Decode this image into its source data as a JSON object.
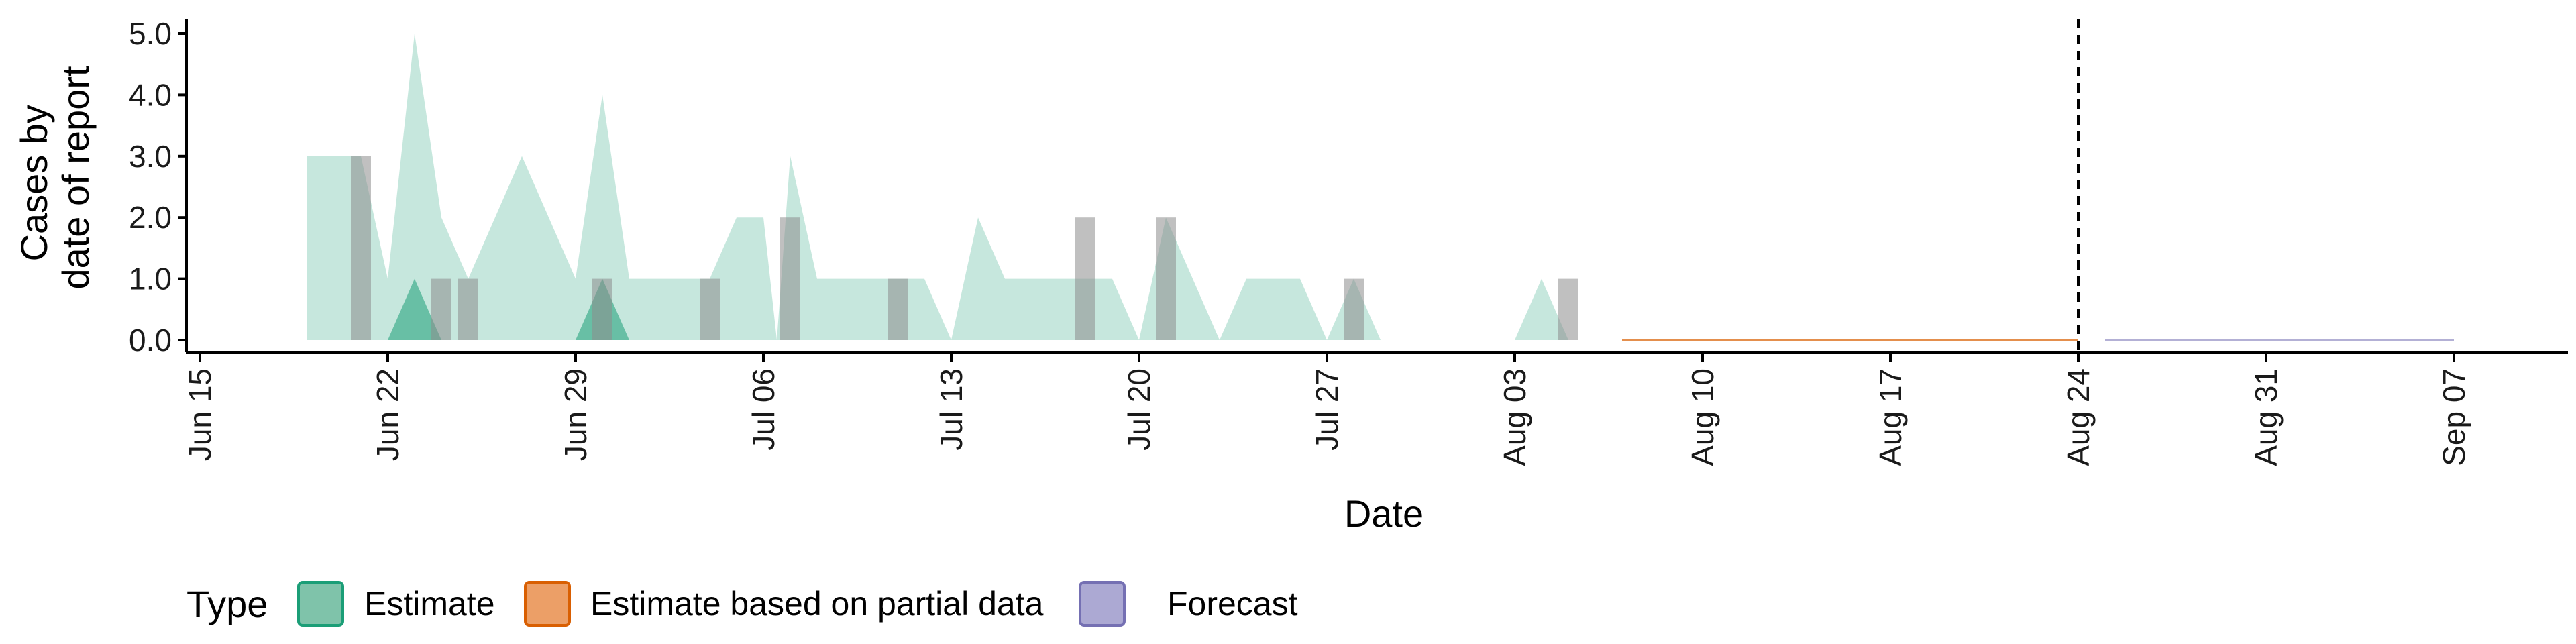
{
  "chart_data": {
    "type": "area",
    "xlabel": "Date",
    "ylabel_lines": [
      "Cases by",
      "date of report"
    ],
    "x_domain": [
      "2020-06-12",
      "2020-09-11"
    ],
    "ylim": [
      -0.2,
      5.25
    ],
    "y_ticks": [
      "0.0",
      "1.0",
      "2.0",
      "3.0",
      "4.0",
      "5.0"
    ],
    "x_ticks": [
      {
        "date": "2020-06-15",
        "label": "Jun 15"
      },
      {
        "date": "2020-06-22",
        "label": "Jun 22"
      },
      {
        "date": "2020-06-29",
        "label": "Jun 29"
      },
      {
        "date": "2020-07-06",
        "label": "Jul 06"
      },
      {
        "date": "2020-07-13",
        "label": "Jul 13"
      },
      {
        "date": "2020-07-20",
        "label": "Jul 20"
      },
      {
        "date": "2020-07-27",
        "label": "Jul 27"
      },
      {
        "date": "2020-08-03",
        "label": "Aug 03"
      },
      {
        "date": "2020-08-10",
        "label": "Aug 10"
      },
      {
        "date": "2020-08-17",
        "label": "Aug 17"
      },
      {
        "date": "2020-08-24",
        "label": "Aug 24"
      },
      {
        "date": "2020-08-31",
        "label": "Aug 31"
      },
      {
        "date": "2020-09-07",
        "label": "Sep 07"
      }
    ],
    "forecast_line_date": "2020-08-24",
    "observed_bars": [
      {
        "date": "2020-06-21",
        "value": 3
      },
      {
        "date": "2020-06-24",
        "value": 1
      },
      {
        "date": "2020-06-25",
        "value": 1
      },
      {
        "date": "2020-06-30",
        "value": 1
      },
      {
        "date": "2020-07-04",
        "value": 1
      },
      {
        "date": "2020-07-07",
        "value": 2
      },
      {
        "date": "2020-07-11",
        "value": 1
      },
      {
        "date": "2020-07-18",
        "value": 2
      },
      {
        "date": "2020-07-21",
        "value": 2
      },
      {
        "date": "2020-07-28",
        "value": 1
      },
      {
        "date": "2020-08-05",
        "value": 1
      }
    ],
    "series": [
      {
        "name": "Estimate",
        "color": "#1b9e77",
        "outer_band": [
          [
            "2020-06-19",
            3
          ],
          [
            "2020-06-21",
            3
          ],
          [
            "2020-06-22",
            1
          ],
          [
            "2020-06-23",
            5
          ],
          [
            "2020-06-24",
            2
          ],
          [
            "2020-06-25",
            1
          ],
          [
            "2020-06-27",
            3
          ],
          [
            "2020-06-29",
            1
          ],
          [
            "2020-06-30",
            4
          ],
          [
            "2020-07-01",
            1
          ],
          [
            "2020-07-03",
            1
          ],
          [
            "2020-07-04",
            1
          ],
          [
            "2020-07-05",
            2
          ],
          [
            "2020-07-06",
            2
          ],
          [
            "2020-07-06.5",
            0
          ],
          [
            "2020-07-07",
            3
          ],
          [
            "2020-07-08",
            1
          ],
          [
            "2020-07-12",
            1
          ],
          [
            "2020-07-13",
            0
          ],
          [
            "2020-07-14",
            2
          ],
          [
            "2020-07-15",
            1
          ],
          [
            "2020-07-19",
            1
          ],
          [
            "2020-07-20",
            0
          ],
          [
            "2020-07-21",
            2
          ],
          [
            "2020-07-23",
            0
          ],
          [
            "2020-07-24",
            1
          ],
          [
            "2020-07-26",
            1
          ],
          [
            "2020-07-27",
            0
          ],
          [
            "2020-07-28",
            1
          ],
          [
            "2020-07-29",
            0
          ],
          [
            "2020-08-03",
            0
          ],
          [
            "2020-08-04",
            1
          ],
          [
            "2020-08-05",
            0
          ],
          [
            "2020-08-06",
            0
          ]
        ],
        "inner_band": [
          [
            "2020-06-22",
            0
          ],
          [
            "2020-06-23",
            1
          ],
          [
            "2020-06-24",
            0
          ],
          [
            "2020-06-29",
            0
          ],
          [
            "2020-06-30",
            1
          ],
          [
            "2020-07-01",
            0
          ]
        ]
      },
      {
        "name": "Estimate based on partial data",
        "color": "#d95f02",
        "flat": {
          "start": "2020-08-07",
          "end": "2020-08-24",
          "value": 0
        }
      },
      {
        "name": "Forecast",
        "color": "#7570b3",
        "flat": {
          "start": "2020-08-25",
          "end": "2020-09-07",
          "value": 0
        }
      }
    ],
    "legend": {
      "title": "Type",
      "position": "bottom",
      "items": [
        {
          "label": "Estimate",
          "fill": "#7fc3aa",
          "stroke": "#1b9e77"
        },
        {
          "label": "Estimate based on partial data",
          "fill": "#ec9f67",
          "stroke": "#d95f02"
        },
        {
          "label": "Forecast",
          "fill": "#aca9d3",
          "stroke": "#7570b3"
        }
      ]
    },
    "grid": false
  }
}
